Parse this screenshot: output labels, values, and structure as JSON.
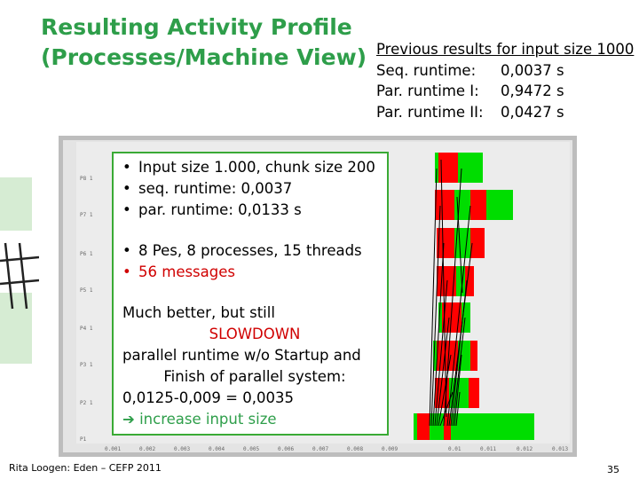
{
  "title": {
    "line1": "Resulting Activity Profile",
    "line2": "(Processes/Machine View)"
  },
  "previous_results": {
    "heading": "Previous results for input size 1000",
    "rows": [
      {
        "label": "Seq. runtime:",
        "value": "0,0037 s"
      },
      {
        "label": "Par.  runtime I:",
        "value": "0,9472 s"
      },
      {
        "label": "Par. runtime II:",
        "value": "0,0427 s"
      }
    ]
  },
  "profile": {
    "y_labels": [
      "P8 1",
      "P7 1",
      "P6 1",
      "P5 1",
      "P4 1",
      "P3 1",
      "P2 1",
      "P1"
    ],
    "x_labels": [
      "0.001",
      "0.002",
      "0.003",
      "0.004",
      "0.005",
      "0.006",
      "0.007",
      "0.008",
      "0.009",
      "0.01",
      "0.011",
      "0.012",
      "0.013"
    ],
    "colors": {
      "running": "#00dd00",
      "blocked": "#ff0000",
      "message": "#000000"
    }
  },
  "overlay": {
    "bullets1": [
      "Input size 1.000, chunk size 200",
      "seq. runtime: 0,0037",
      "par. runtime:  0,0133 s"
    ],
    "bullet_pes": "8 Pes, 8 processes, 15 threads",
    "bullet_messages": "56 messages",
    "much_better": "Much better, but still",
    "slowdown": "SLOWDOWN",
    "parallel_runtime": "parallel runtime w/o  Startup and",
    "finish": "Finish of parallel system:",
    "calc": "0,0125-0,009 = 0,0035",
    "arrow": "➔",
    "increase": "increase input size"
  },
  "footer": "Rita Loogen: Eden – CEFP 2011",
  "page_number": "35"
}
